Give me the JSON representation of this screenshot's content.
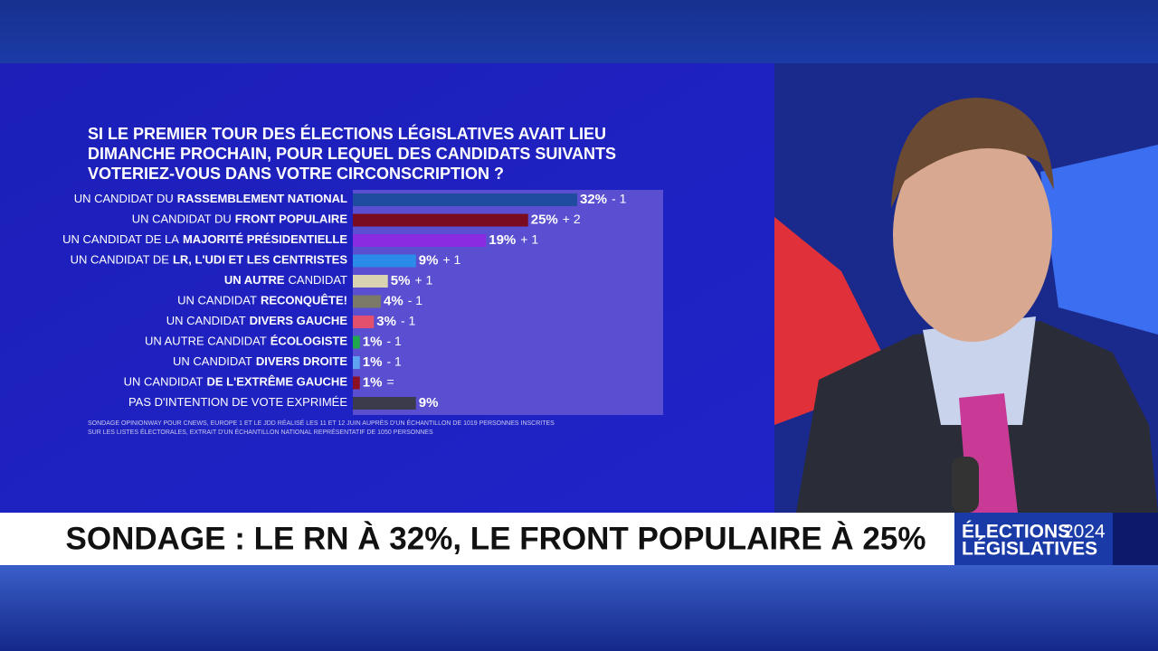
{
  "chart_data": {
    "type": "bar",
    "title": [
      "SI LE PREMIER TOUR DES ÉLECTIONS LÉGISLATIVES AVAIT LIEU",
      "DIMANCHE PROCHAIN, POUR LEQUEL DES CANDIDATS SUIVANTS",
      "VOTERIEZ-VOUS DANS VOTRE CIRCONSCRIPTION ?"
    ],
    "categories": [
      {
        "before": "UN CANDIDAT DU",
        "bold": "RASSEMBLEMENT NATIONAL"
      },
      {
        "before": "UN CANDIDAT DU",
        "bold": "FRONT POPULAIRE"
      },
      {
        "before": "UN CANDIDAT DE LA",
        "bold": "MAJORITÉ PRÉSIDENTIELLE"
      },
      {
        "before": "UN CANDIDAT DE",
        "bold": "LR, L'UDI ET LES CENTRISTES"
      },
      {
        "bold": "UN AUTRE",
        "after": "CANDIDAT"
      },
      {
        "before": "UN CANDIDAT",
        "bold": "RECONQUÊTE!"
      },
      {
        "before": "UN CANDIDAT",
        "bold": "DIVERS GAUCHE"
      },
      {
        "before": "UN AUTRE CANDIDAT",
        "bold": "ÉCOLOGISTE"
      },
      {
        "before": "UN CANDIDAT",
        "bold": "DIVERS DROITE"
      },
      {
        "before": "UN CANDIDAT",
        "bold": "DE L'EXTRÊME GAUCHE"
      },
      {
        "before": "PAS D'INTENTION DE VOTE EXPRIMÉE"
      }
    ],
    "values": [
      32,
      25,
      19,
      9,
      5,
      4,
      3,
      1,
      1,
      1,
      9
    ],
    "value_labels": [
      "32%",
      "25%",
      "19%",
      "9%",
      "5%",
      "4%",
      "3%",
      "1%",
      "1%",
      "1%",
      "9%"
    ],
    "changes": [
      "- 1",
      "+ 2",
      "+ 1",
      "+ 1",
      "+ 1",
      "- 1",
      "- 1",
      "- 1",
      "- 1",
      "=",
      null
    ],
    "colors": [
      "#1f4c9e",
      "#7a0c22",
      "#8a2be2",
      "#2b8be9",
      "#d9d3b2",
      "#7b7a68",
      "#e2506e",
      "#1ea84b",
      "#5ea2f2",
      "#8c1022",
      "#3b3b4b"
    ],
    "source": [
      "SONDAGE OPINIONWAY POUR CNEWS, EUROPE 1 ET LE JDD RÉALISÉ LES 11 ET 12 JUIN AUPRÈS D'UN ÉCHANTILLON DE 1019 PERSONNES INSCRITES",
      "SUR LES LISTES ÉLECTORALES, EXTRAIT D'UN ÉCHANTILLON NATIONAL REPRÉSENTATIF DE 1050 PERSONNES"
    ]
  },
  "banner": "SONDAGE : LE RN À 32%, LE FRONT POPULAIRE À 25%",
  "logo": {
    "line1": "ÉLECTIONS",
    "year": "2024",
    "line2": "LÉGISLATIVES"
  }
}
